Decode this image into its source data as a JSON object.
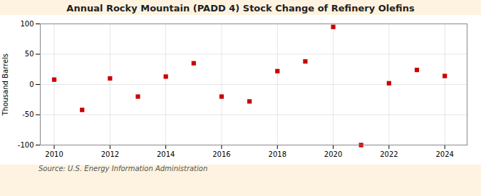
{
  "chart_data": {
    "type": "scatter",
    "title": "Annual Rocky Mountain (PADD 4) Stock Change of Refinery Olefins",
    "ylabel": "Thousand Barrels",
    "annotation": "Source: U.S. Energy Information Administration",
    "x": [
      2010,
      2011,
      2012,
      2013,
      2014,
      2015,
      2016,
      2017,
      2018,
      2019,
      2020,
      2021,
      2022,
      2023,
      2024
    ],
    "values": [
      8,
      -42,
      10,
      -20,
      13,
      35,
      -20,
      -28,
      22,
      38,
      95,
      -100,
      2,
      24,
      14
    ],
    "color": "#cc0000",
    "marker": "square",
    "xlim": [
      2009.5,
      2024.8
    ],
    "xticks": [
      2010,
      2012,
      2014,
      2016,
      2018,
      2020,
      2022,
      2024
    ],
    "ylim": [
      -100,
      100
    ],
    "yticks": [
      -100,
      -50,
      0,
      50,
      100
    ],
    "grid": true
  }
}
